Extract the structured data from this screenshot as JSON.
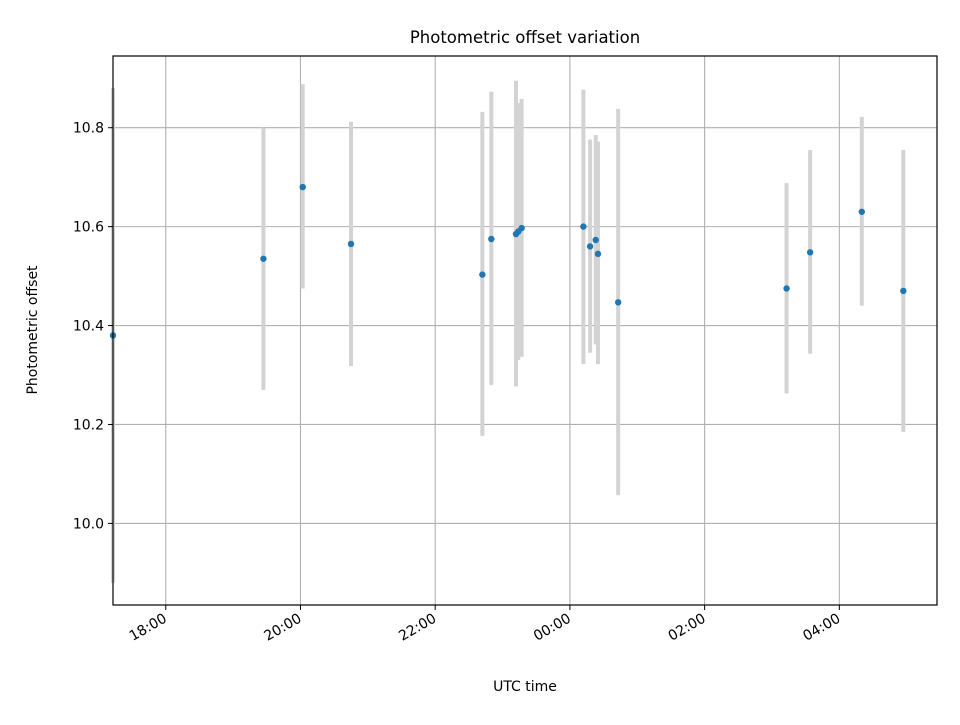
{
  "chart_data": {
    "type": "scatter",
    "title": "Photometric offset variation",
    "xlabel": "UTC time",
    "ylabel": "Photometric offset",
    "x_ticks": [
      "18:00",
      "20:00",
      "22:00",
      "00:00",
      "02:00",
      "04:00"
    ],
    "y_ticks": [
      "10.0",
      "10.2",
      "10.4",
      "10.6",
      "10.8"
    ],
    "xlim": [
      "17:13",
      "05:27"
    ],
    "ylim": [
      9.835,
      10.945
    ],
    "grid": true,
    "colors": {
      "point": "#1f77b4",
      "errorbar": "#d3d3d3",
      "grid": "#b0b0b0"
    },
    "points": [
      {
        "x": "17:13",
        "y": 10.38,
        "ymin": 9.88,
        "ymax": 10.88
      },
      {
        "x": "19:27",
        "y": 10.535,
        "ymin": 10.27,
        "ymax": 10.8
      },
      {
        "x": "20:02",
        "y": 10.68,
        "ymin": 10.475,
        "ymax": 10.888
      },
      {
        "x": "20:45",
        "y": 10.565,
        "ymin": 10.318,
        "ymax": 10.812
      },
      {
        "x": "22:42",
        "y": 10.503,
        "ymin": 10.177,
        "ymax": 10.832
      },
      {
        "x": "22:50",
        "y": 10.575,
        "ymin": 10.28,
        "ymax": 10.873
      },
      {
        "x": "23:12",
        "y": 10.585,
        "ymin": 10.277,
        "ymax": 10.895
      },
      {
        "x": "23:14",
        "y": 10.59,
        "ymin": 10.33,
        "ymax": 10.85
      },
      {
        "x": "23:17",
        "y": 10.597,
        "ymin": 10.337,
        "ymax": 10.858
      },
      {
        "x": "00:12",
        "y": 10.6,
        "ymin": 10.322,
        "ymax": 10.877
      },
      {
        "x": "00:18",
        "y": 10.56,
        "ymin": 10.345,
        "ymax": 10.776
      },
      {
        "x": "00:23",
        "y": 10.573,
        "ymin": 10.362,
        "ymax": 10.785
      },
      {
        "x": "00:25",
        "y": 10.545,
        "ymin": 10.322,
        "ymax": 10.772
      },
      {
        "x": "00:43",
        "y": 10.447,
        "ymin": 10.057,
        "ymax": 10.838
      },
      {
        "x": "03:13",
        "y": 10.475,
        "ymin": 10.263,
        "ymax": 10.688
      },
      {
        "x": "03:34",
        "y": 10.548,
        "ymin": 10.343,
        "ymax": 10.755
      },
      {
        "x": "04:20",
        "y": 10.63,
        "ymin": 10.44,
        "ymax": 10.822
      },
      {
        "x": "04:57",
        "y": 10.47,
        "ymin": 10.185,
        "ymax": 10.755
      }
    ]
  }
}
